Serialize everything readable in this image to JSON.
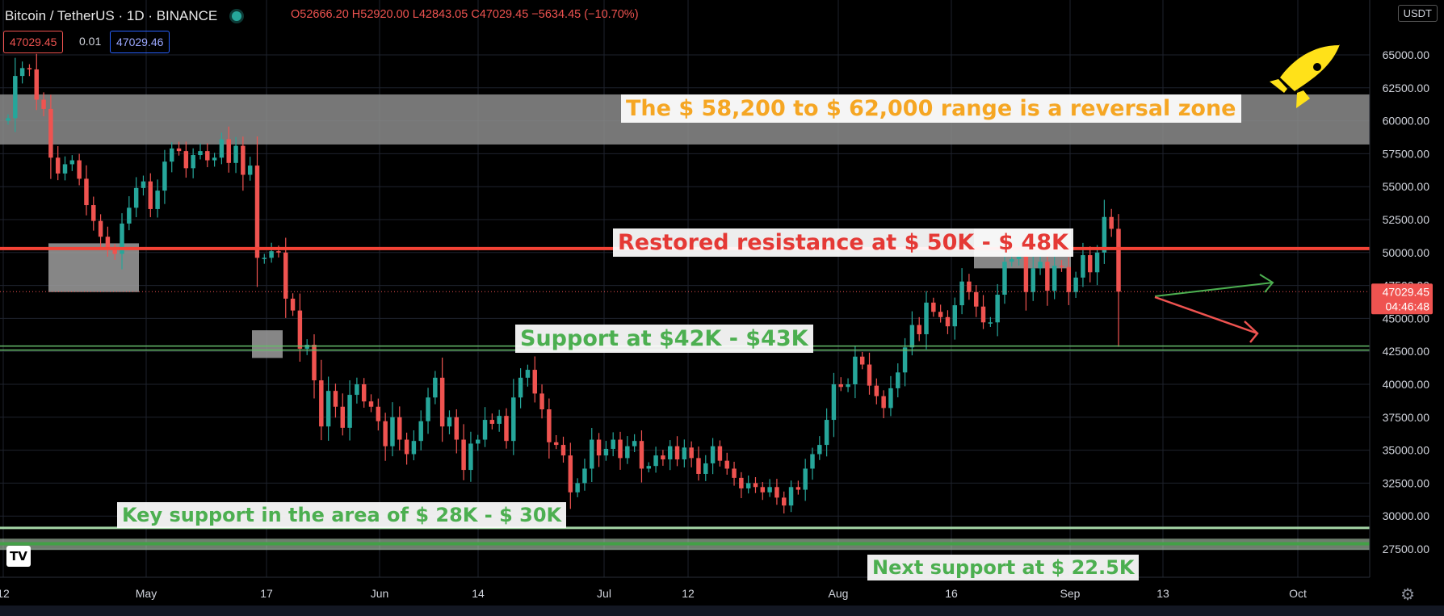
{
  "header": {
    "symbol": "Bitcoin / TetherUS · 1D · BINANCE",
    "ohlc": "O52666.20 H52920.00 L42843.05 C47029.45 −5634.45 (−10.70%)",
    "sell_price": "47029.45",
    "spread": "0.01",
    "buy_price": "47029.46"
  },
  "currency_badge": "USDT",
  "annotations": {
    "reversal_zone": "The $ 58,200 to $ 62,000 range is a reversal zone",
    "resistance": "Restored resistance at $ 50K - $ 48K",
    "support": "Support at $42K - $43K",
    "key_support": "Key support in the area of $ 28K - $ 30K",
    "next_support": "Next support at $ 22.5K"
  },
  "colors": {
    "up": "#26a69a",
    "down": "#ef5350",
    "orange": "#f5a623",
    "red_label": "#e53935",
    "green_label": "#4caf50",
    "zone": "#8c8c8c",
    "rocket": "#ffe119"
  },
  "icons": {
    "logo": "tradingview-logo-icon",
    "rocket": "rocket-icon",
    "settings": "gear-icon"
  },
  "chart_data": {
    "type": "candlestick",
    "title": "Bitcoin / TetherUS · 1D · BINANCE",
    "ylim": [
      26000,
      67500
    ],
    "y_ticks": [
      27500,
      30000,
      32500,
      35000,
      37500,
      40000,
      42500,
      45000,
      47500,
      50000,
      52500,
      55000,
      57500,
      60000,
      62500,
      65000
    ],
    "y_tick_labels": [
      "27500.00",
      "30000.00",
      "32500.00",
      "35000.00",
      "37500.00",
      "40000.00",
      "42500.00",
      "45000.00",
      "47500.00",
      "50000.00",
      "52500.00",
      "55000.00",
      "57500.00",
      "60000.00",
      "62500.00",
      "65000.00"
    ],
    "x_tick_labels": [
      "12",
      "May",
      "17",
      "Jun",
      "14",
      "Jul",
      "12",
      "Aug",
      "16",
      "Sep",
      "13",
      "Oct"
    ],
    "last_price_label": "47029.45",
    "countdown_label": "04:46:48",
    "zones": [
      [
        58200,
        62000
      ],
      [
        28000,
        30000
      ]
    ],
    "resistance_line": 50300,
    "support_lines": [
      42600,
      42900
    ],
    "current_price": 47029.45,
    "closes": [
      60200,
      63400,
      64000,
      63900,
      61600,
      60900,
      57200,
      56000,
      56700,
      57000,
      55600,
      53600,
      52400,
      51200,
      50200,
      49900,
      52200,
      53400,
      54900,
      55400,
      53300,
      54700,
      56900,
      57900,
      57700,
      56400,
      57400,
      57700,
      57000,
      57200,
      58600,
      56800,
      58100,
      55900,
      56600,
      49600,
      49600,
      50100,
      50000,
      46500,
      45600,
      42700,
      43000,
      40300,
      36800,
      39500,
      38300,
      36700,
      39200,
      40000,
      38700,
      38300,
      37200,
      35300,
      37500,
      35800,
      34700,
      35700,
      37200,
      39000,
      40500,
      36800,
      37500,
      35800,
      33500,
      35500,
      35800,
      37300,
      37000,
      37600,
      35700,
      39000,
      40500,
      41100,
      39300,
      38100,
      35600,
      35400,
      34600,
      31800,
      32500,
      33600,
      35800,
      34600,
      35100,
      35800,
      34400,
      35300,
      35700,
      33600,
      33800,
      34600,
      34300,
      35300,
      34300,
      35200,
      34400,
      33200,
      34000,
      35300,
      34200,
      33600,
      32900,
      32100,
      32500,
      32200,
      31800,
      32200,
      31400,
      30800,
      32200,
      32000,
      33600,
      34700,
      35400,
      37300,
      40000,
      39800,
      40000,
      42100,
      41500,
      39900,
      39100,
      38200,
      39700,
      40900,
      42800,
      44500,
      43800,
      46200,
      45500,
      45100,
      44400,
      46000,
      47800,
      47000,
      45900,
      44700,
      44700,
      46800,
      49300,
      49500,
      49800,
      47000,
      48800,
      49300,
      47100,
      49000,
      48900,
      47000,
      48100,
      49800,
      48500,
      50000,
      52700,
      51800,
      47029
    ]
  }
}
